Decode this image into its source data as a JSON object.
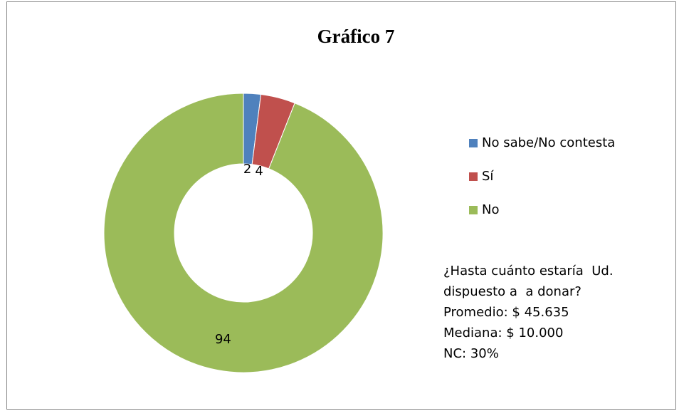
{
  "chart_data": {
    "type": "donut",
    "title": "Gráfico 7",
    "categories": [
      "No sabe/No contesta",
      "Sí",
      "No"
    ],
    "values": [
      2,
      4,
      94
    ],
    "colors": [
      "#4f81bd",
      "#c0504d",
      "#9bbb59"
    ],
    "annotation": [
      "¿Hasta cuánto estaría  Ud.",
      "dispuesto a  a donar?",
      "Promedio: $ 45.635",
      "Mediana: $ 10.000",
      "NC: 30%"
    ]
  }
}
